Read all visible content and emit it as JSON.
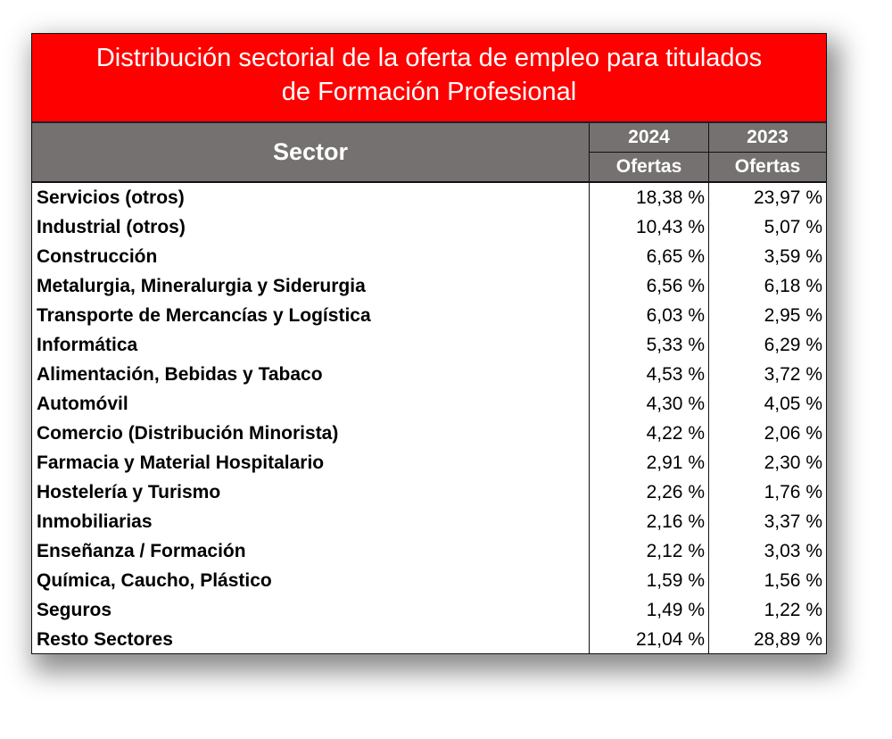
{
  "chart_data": {
    "type": "table",
    "title_line1": "Distribución sectorial de la oferta de empleo para titulados",
    "title_line2": "de Formación Profesional",
    "columns": {
      "sector": "Sector",
      "year1": "2024",
      "year2": "2023",
      "sub1": "Ofertas",
      "sub2": "Ofertas"
    },
    "colors": {
      "title_bg": "#ff0000",
      "header_bg": "#767171"
    },
    "rows": [
      {
        "sector": "Servicios (otros)",
        "v2024": "18,38 %",
        "v2023": "23,97 %"
      },
      {
        "sector": "Industrial (otros)",
        "v2024": "10,43 %",
        "v2023": "5,07 %"
      },
      {
        "sector": "Construcción",
        "v2024": "6,65 %",
        "v2023": "3,59 %"
      },
      {
        "sector": "Metalurgia, Mineralurgia y Siderurgia",
        "v2024": "6,56 %",
        "v2023": "6,18 %"
      },
      {
        "sector": "Transporte de Mercancías y Logística",
        "v2024": "6,03 %",
        "v2023": "2,95 %"
      },
      {
        "sector": "Informática",
        "v2024": "5,33 %",
        "v2023": "6,29 %"
      },
      {
        "sector": "Alimentación, Bebidas y Tabaco",
        "v2024": "4,53 %",
        "v2023": "3,72 %"
      },
      {
        "sector": "Automóvil",
        "v2024": "4,30 %",
        "v2023": "4,05 %"
      },
      {
        "sector": "Comercio (Distribución Minorista)",
        "v2024": "4,22 %",
        "v2023": "2,06 %"
      },
      {
        "sector": "Farmacia y Material Hospitalario",
        "v2024": "2,91 %",
        "v2023": "2,30 %"
      },
      {
        "sector": "Hostelería y Turismo",
        "v2024": "2,26 %",
        "v2023": "1,76 %"
      },
      {
        "sector": "Inmobiliarias",
        "v2024": "2,16 %",
        "v2023": "3,37 %"
      },
      {
        "sector": "Enseñanza / Formación",
        "v2024": "2,12 %",
        "v2023": "3,03 %"
      },
      {
        "sector": "Química, Caucho, Plástico",
        "v2024": "1,59 %",
        "v2023": "1,56 %"
      },
      {
        "sector": "Seguros",
        "v2024": "1,49 %",
        "v2023": "1,22 %"
      },
      {
        "sector": "Resto Sectores",
        "v2024": "21,04 %",
        "v2023": "28,89 %"
      }
    ]
  }
}
